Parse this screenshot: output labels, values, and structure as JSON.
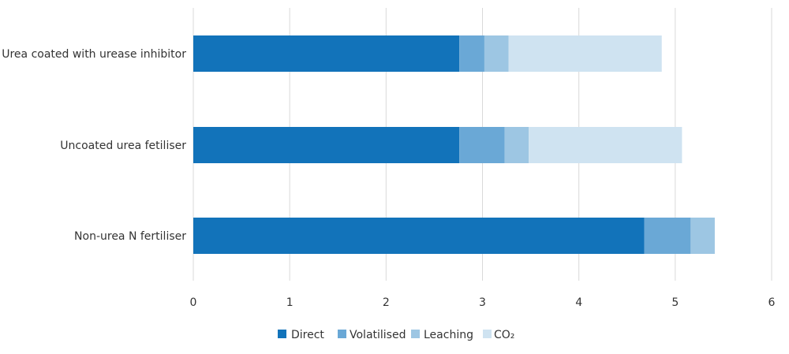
{
  "chart_data": {
    "type": "bar",
    "orientation": "horizontal",
    "stacked": true,
    "title": "",
    "xlabel": "",
    "ylabel": "",
    "categories": [
      "Urea coated with urease inhibitor",
      "Uncoated urea fetiliser",
      "Non-urea N fertiliser"
    ],
    "series": [
      {
        "name": "Direct",
        "color": "#1273BA",
        "values": [
          2.76,
          2.76,
          4.68
        ]
      },
      {
        "name": "Volatilised",
        "color": "#6AA8D6",
        "values": [
          0.26,
          0.47,
          0.48
        ]
      },
      {
        "name": "Leaching",
        "color": "#9DC6E3",
        "values": [
          0.25,
          0.25,
          0.25
        ]
      },
      {
        "name": "CO₂",
        "color": "#CFE3F1",
        "values": [
          1.59,
          1.59,
          0
        ]
      }
    ],
    "xlim": [
      0,
      6
    ],
    "xticks": [
      "0",
      "1",
      "2",
      "3",
      "4",
      "5",
      "6"
    ],
    "grid": true,
    "legend_position": "bottom"
  }
}
